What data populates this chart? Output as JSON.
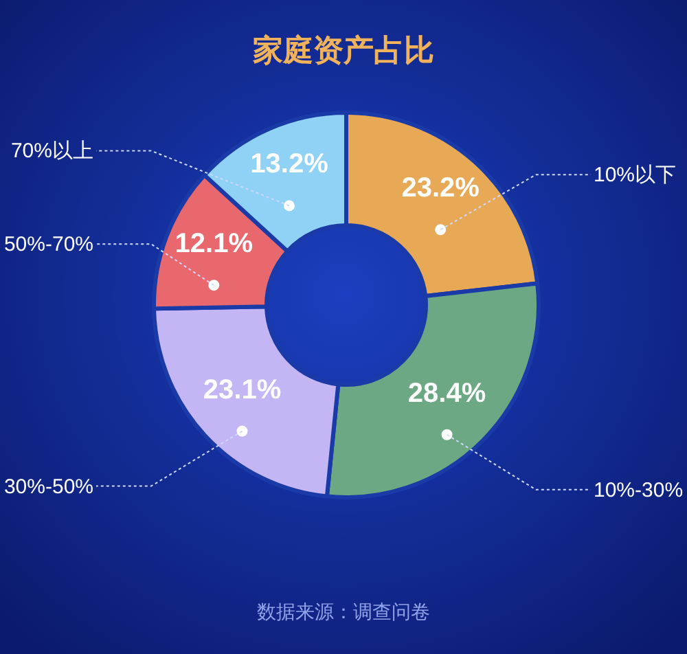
{
  "chart_data": {
    "type": "donut",
    "title": "家庭资产占比",
    "categories": [
      "10%以下",
      "10%-30%",
      "30%-50%",
      "50%-70%",
      "70%以上"
    ],
    "values": [
      23.2,
      28.4,
      23.1,
      12.1,
      13.2
    ],
    "value_labels": [
      "23.2%",
      "28.4%",
      "23.1%",
      "12.1%",
      "13.2%"
    ],
    "colors": [
      "#e8a957",
      "#6ba883",
      "#c4b5f5",
      "#e8686e",
      "#8fd2f5"
    ],
    "annotations": [
      "数据来源：调查问卷"
    ]
  }
}
